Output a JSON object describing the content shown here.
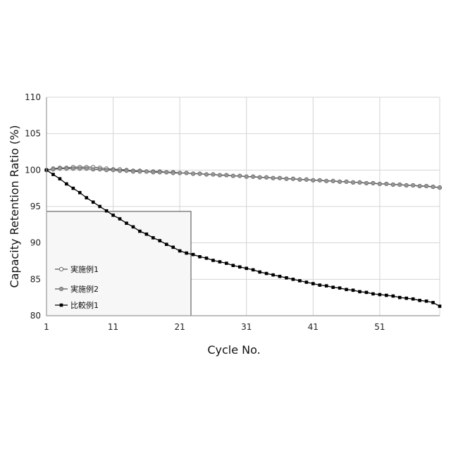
{
  "chart_data": {
    "type": "line",
    "title": "",
    "xlabel": "Cycle No.",
    "ylabel": "Capacity Retention Ratio (%)",
    "xlim": [
      1,
      60
    ],
    "ylim": [
      80,
      110
    ],
    "xticks": [
      "1",
      "11",
      "21",
      "31",
      "41",
      "51"
    ],
    "yticks": [
      "80",
      "85",
      "90",
      "95",
      "100",
      "105",
      "110"
    ],
    "grid": true,
    "legend_position": "bottom-left",
    "series": [
      {
        "name": "実施例1",
        "marker": "open-circle",
        "color": "#555555",
        "values": [
          100.0,
          100.2,
          100.3,
          100.3,
          100.4,
          100.4,
          100.4,
          100.4,
          100.3,
          100.2,
          100.1,
          100.1,
          100.0,
          99.9,
          99.9,
          99.8,
          99.8,
          99.8,
          99.7,
          99.7,
          99.6,
          99.6,
          99.5,
          99.5,
          99.4,
          99.4,
          99.3,
          99.3,
          99.2,
          99.2,
          99.1,
          99.1,
          99.0,
          99.0,
          98.9,
          98.9,
          98.8,
          98.8,
          98.7,
          98.7,
          98.6,
          98.6,
          98.5,
          98.5,
          98.4,
          98.4,
          98.3,
          98.3,
          98.2,
          98.2,
          98.1,
          98.1,
          98.0,
          98.0,
          97.9,
          97.9,
          97.8,
          97.8,
          97.7,
          97.6
        ]
      },
      {
        "name": "実施例2",
        "marker": "gray-circle",
        "color": "#888888",
        "values": [
          100.0,
          100.1,
          100.2,
          100.2,
          100.2,
          100.2,
          100.2,
          100.1,
          100.1,
          100.0,
          100.0,
          99.9,
          99.9,
          99.8,
          99.8,
          99.8,
          99.7,
          99.7,
          99.7,
          99.6,
          99.6,
          99.6,
          99.5,
          99.5,
          99.4,
          99.4,
          99.3,
          99.3,
          99.2,
          99.2,
          99.1,
          99.1,
          99.0,
          99.0,
          98.9,
          98.9,
          98.8,
          98.8,
          98.7,
          98.7,
          98.6,
          98.6,
          98.5,
          98.5,
          98.4,
          98.4,
          98.3,
          98.3,
          98.2,
          98.2,
          98.1,
          98.1,
          98.0,
          98.0,
          97.9,
          97.9,
          97.8,
          97.8,
          97.7,
          97.6
        ]
      },
      {
        "name": "比較例1",
        "marker": "filled-square",
        "color": "#000000",
        "values": [
          100.0,
          99.4,
          98.8,
          98.1,
          97.5,
          96.9,
          96.2,
          95.6,
          95.0,
          94.4,
          93.8,
          93.3,
          92.7,
          92.2,
          91.6,
          91.2,
          90.7,
          90.3,
          89.8,
          89.4,
          88.9,
          88.6,
          88.4,
          88.1,
          87.9,
          87.6,
          87.4,
          87.2,
          86.9,
          86.7,
          86.5,
          86.3,
          86.0,
          85.8,
          85.6,
          85.4,
          85.2,
          85.0,
          84.8,
          84.6,
          84.4,
          84.2,
          84.1,
          83.9,
          83.8,
          83.6,
          83.5,
          83.3,
          83.2,
          83.0,
          82.9,
          82.8,
          82.7,
          82.5,
          82.4,
          82.3,
          82.1,
          82.0,
          81.8,
          81.3
        ]
      }
    ]
  }
}
